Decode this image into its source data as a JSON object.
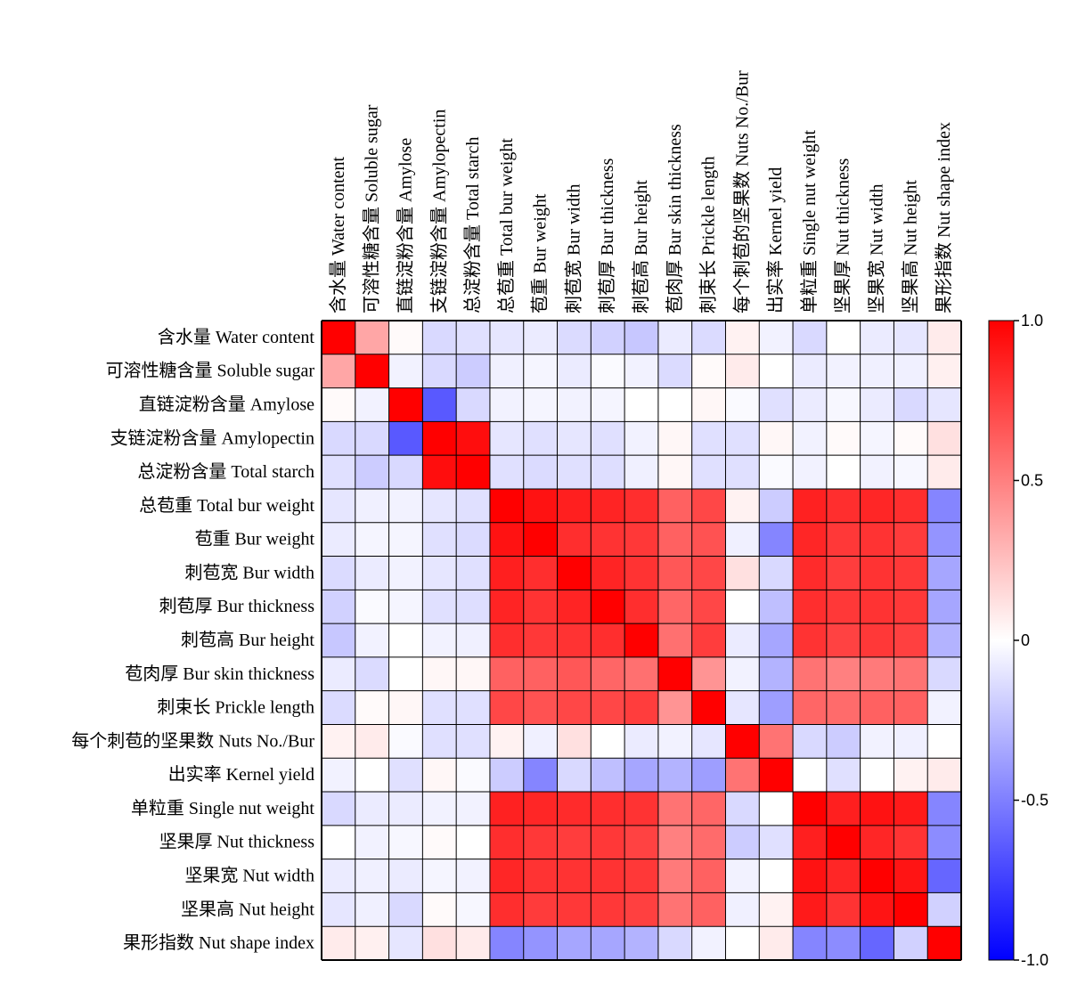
{
  "chart_data": {
    "type": "heatmap",
    "variables": [
      "含水量 Water content",
      "可溶性糖含量 Soluble sugar",
      "直链淀粉含量 Amylose",
      "支链淀粉含量 Amylopectin",
      "总淀粉含量 Total starch",
      "总苞重 Total bur weight",
      "苞重 Bur weight",
      "刺苞宽 Bur width",
      "刺苞厚 Bur thickness",
      "刺苞高 Bur height",
      "苞肉厚 Bur skin thickness",
      "刺束长 Prickle length",
      "每个刺苞的坚果数 Nuts No./Bur",
      "出实率 Kernel yield",
      "单粒重 Single nut weight",
      "坚果厚 Nut thickness",
      "坚果宽 Nut width",
      "坚果高 Nut height",
      "果形指数 Nut shape index"
    ],
    "matrix": [
      [
        1.0,
        0.35,
        0.02,
        -0.15,
        -0.12,
        -0.1,
        -0.08,
        -0.14,
        -0.18,
        -0.22,
        -0.08,
        -0.14,
        0.05,
        -0.05,
        -0.15,
        0.0,
        -0.08,
        -0.1,
        0.08
      ],
      [
        0.35,
        1.0,
        -0.05,
        -0.15,
        -0.2,
        -0.06,
        -0.04,
        -0.08,
        -0.02,
        -0.05,
        -0.14,
        0.02,
        0.08,
        0.0,
        -0.08,
        -0.05,
        -0.06,
        -0.06,
        0.06
      ],
      [
        0.02,
        -0.05,
        1.0,
        -0.65,
        -0.15,
        -0.05,
        -0.04,
        -0.05,
        -0.04,
        0.0,
        0.0,
        0.03,
        -0.02,
        -0.12,
        -0.08,
        -0.03,
        -0.08,
        -0.15,
        -0.1
      ],
      [
        -0.15,
        -0.15,
        -0.65,
        1.0,
        0.95,
        -0.1,
        -0.12,
        -0.1,
        -0.12,
        -0.05,
        0.03,
        -0.12,
        -0.12,
        0.03,
        -0.05,
        0.02,
        -0.04,
        0.02,
        0.12
      ],
      [
        -0.12,
        -0.2,
        -0.15,
        0.95,
        1.0,
        -0.12,
        -0.14,
        -0.12,
        -0.13,
        -0.06,
        0.03,
        -0.12,
        -0.12,
        -0.02,
        -0.05,
        0.0,
        -0.05,
        -0.03,
        0.08
      ],
      [
        -0.1,
        -0.06,
        -0.05,
        -0.1,
        -0.12,
        1.0,
        0.93,
        0.88,
        0.86,
        0.82,
        0.62,
        0.72,
        0.05,
        -0.2,
        0.87,
        0.82,
        0.85,
        0.82,
        -0.48
      ],
      [
        -0.08,
        -0.04,
        -0.04,
        -0.12,
        -0.14,
        0.93,
        1.0,
        0.82,
        0.8,
        0.78,
        0.62,
        0.68,
        -0.06,
        -0.48,
        0.85,
        0.78,
        0.8,
        0.77,
        -0.42
      ],
      [
        -0.14,
        -0.08,
        -0.05,
        -0.1,
        -0.12,
        0.88,
        0.82,
        1.0,
        0.86,
        0.8,
        0.66,
        0.72,
        0.12,
        -0.15,
        0.83,
        0.76,
        0.8,
        0.78,
        -0.35
      ],
      [
        -0.18,
        -0.02,
        -0.04,
        -0.12,
        -0.13,
        0.86,
        0.8,
        0.86,
        1.0,
        0.82,
        0.6,
        0.72,
        0.0,
        -0.25,
        0.82,
        0.78,
        0.8,
        0.78,
        -0.35
      ],
      [
        -0.22,
        -0.05,
        0.0,
        -0.05,
        -0.06,
        0.82,
        0.78,
        0.8,
        0.82,
        1.0,
        0.56,
        0.76,
        -0.08,
        -0.35,
        0.8,
        0.74,
        0.78,
        0.75,
        -0.3
      ],
      [
        -0.08,
        -0.14,
        0.0,
        0.03,
        0.03,
        0.62,
        0.62,
        0.66,
        0.6,
        0.56,
        1.0,
        0.42,
        -0.05,
        -0.3,
        0.55,
        0.5,
        0.52,
        0.55,
        -0.15
      ],
      [
        -0.14,
        0.02,
        0.03,
        -0.12,
        -0.12,
        0.72,
        0.68,
        0.72,
        0.72,
        0.76,
        0.42,
        1.0,
        -0.1,
        -0.38,
        0.6,
        0.58,
        0.62,
        0.62,
        -0.05
      ],
      [
        0.05,
        0.08,
        -0.02,
        -0.12,
        -0.12,
        0.05,
        -0.06,
        0.12,
        0.0,
        -0.08,
        -0.05,
        -0.1,
        1.0,
        0.55,
        -0.15,
        -0.2,
        -0.05,
        -0.06,
        0.0
      ],
      [
        -0.05,
        0.0,
        -0.12,
        0.03,
        -0.02,
        -0.2,
        -0.48,
        -0.15,
        -0.25,
        -0.35,
        -0.3,
        -0.38,
        0.55,
        1.0,
        0.0,
        -0.12,
        0.0,
        0.05,
        0.08
      ],
      [
        -0.15,
        -0.08,
        -0.08,
        -0.05,
        -0.05,
        0.87,
        0.85,
        0.83,
        0.82,
        0.8,
        0.55,
        0.6,
        -0.15,
        0.0,
        1.0,
        0.88,
        0.93,
        0.9,
        -0.48
      ],
      [
        0.0,
        -0.05,
        -0.03,
        0.02,
        0.0,
        0.82,
        0.78,
        0.76,
        0.78,
        0.74,
        0.5,
        0.58,
        -0.2,
        -0.12,
        0.88,
        1.0,
        0.85,
        0.8,
        -0.45
      ],
      [
        -0.08,
        -0.06,
        -0.08,
        -0.04,
        -0.05,
        0.85,
        0.8,
        0.8,
        0.8,
        0.78,
        0.52,
        0.62,
        -0.05,
        0.0,
        0.93,
        0.85,
        1.0,
        0.92,
        -0.6
      ],
      [
        -0.1,
        -0.06,
        -0.15,
        0.02,
        -0.03,
        0.82,
        0.77,
        0.78,
        0.78,
        0.75,
        0.55,
        0.62,
        -0.06,
        0.05,
        0.9,
        0.8,
        0.92,
        1.0,
        -0.18
      ],
      [
        0.08,
        0.06,
        -0.1,
        0.12,
        0.08,
        -0.48,
        -0.42,
        -0.35,
        -0.35,
        -0.3,
        -0.15,
        -0.05,
        0.0,
        0.08,
        -0.48,
        -0.45,
        -0.6,
        -0.18,
        1.0
      ]
    ],
    "colorbar": {
      "ticks": [
        "1.0",
        "0.5",
        "0",
        "-0.5",
        "-1.0"
      ],
      "range": [
        -1,
        1
      ],
      "min_color": "#0000ff",
      "mid_color": "#ffffff",
      "max_color": "#ff0000"
    }
  }
}
